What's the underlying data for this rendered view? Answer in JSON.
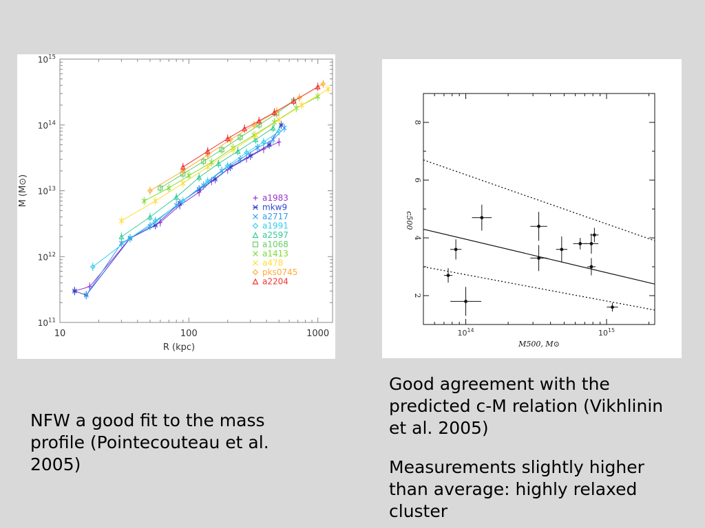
{
  "captions": {
    "left": "NFW a good fit to the mass profile (Pointecouteau et al. 2005)",
    "right_1": "Good agreement with the predicted c-M relation (Vikhlinin et al. 2005)",
    "right_2": "Measurements slightly higher than average: highly relaxed cluster"
  },
  "chart_data": [
    {
      "type": "scatter",
      "xlabel": "R (kpc)",
      "ylabel": "M (M⊙)",
      "xscale": "log",
      "yscale": "log",
      "xlim": [
        10,
        1300
      ],
      "ylim": [
        100000000000.0,
        1000000000000000.0
      ],
      "x_tick_labels": [
        "10",
        "100",
        "1000"
      ],
      "y_tick_labels": [
        {
          "base": "10",
          "exp": "11"
        },
        {
          "base": "10",
          "exp": "12"
        },
        {
          "base": "10",
          "exp": "13"
        },
        {
          "base": "10",
          "exp": "14"
        },
        {
          "base": "10",
          "exp": "15"
        }
      ],
      "legend_position": "right",
      "series": [
        {
          "name": "a1983",
          "marker": "+",
          "color": "#9933cc",
          "x": [
            13,
            17,
            35,
            60,
            85,
            120,
            150,
            200,
            280,
            380,
            500
          ],
          "y": [
            300000000000.0,
            350000000000.0,
            1900000000000.0,
            3300000000000.0,
            6000000000000.0,
            9500000000000.0,
            14000000000000.0,
            21000000000000.0,
            31000000000000.0,
            43000000000000.0,
            55000000000000.0
          ]
        },
        {
          "name": "mkw9",
          "marker": "*",
          "color": "#3344cc",
          "x": [
            13,
            16,
            35,
            55,
            85,
            120,
            160,
            210,
            300,
            420,
            520
          ],
          "y": [
            300000000000.0,
            260000000000.0,
            1900000000000.0,
            3000000000000.0,
            6500000000000.0,
            10500000000000.0,
            15000000000000.0,
            23000000000000.0,
            34000000000000.0,
            50000000000000.0,
            100000000000000.0
          ]
        },
        {
          "name": "a2717",
          "marker": "x",
          "color": "#3399ee",
          "x": [
            16,
            30,
            50,
            80,
            130,
            180,
            250,
            340,
            450,
            550
          ],
          "y": [
            260000000000.0,
            1600000000000.0,
            2900000000000.0,
            6000000000000.0,
            12000000000000.0,
            20000000000000.0,
            30000000000000.0,
            45000000000000.0,
            60000000000000.0,
            90000000000000.0
          ]
        },
        {
          "name": "a1991",
          "marker": "diamond",
          "color": "#33ccee",
          "x": [
            18,
            35,
            55,
            90,
            140,
            200,
            280,
            380,
            500
          ],
          "y": [
            700000000000.0,
            1900000000000.0,
            3500000000000.0,
            7000000000000.0,
            14000000000000.0,
            24000000000000.0,
            38000000000000.0,
            55000000000000.0,
            80000000000000.0
          ]
        },
        {
          "name": "a2597",
          "marker": "triangle",
          "color": "#33cc99",
          "x": [
            30,
            50,
            80,
            120,
            170,
            240,
            330,
            450
          ],
          "y": [
            2000000000000.0,
            4000000000000.0,
            8000000000000.0,
            16000000000000.0,
            26000000000000.0,
            40000000000000.0,
            60000000000000.0,
            90000000000000.0
          ]
        },
        {
          "name": "a1068",
          "marker": "square",
          "color": "#66cc66",
          "x": [
            60,
            90,
            130,
            180,
            250,
            350,
            480,
            650
          ],
          "y": [
            11000000000000.0,
            18000000000000.0,
            28000000000000.0,
            42000000000000.0,
            65000000000000.0,
            100000000000000.0,
            150000000000000.0,
            230000000000000.0
          ]
        },
        {
          "name": "a1413",
          "marker": "x",
          "color": "#77dd33",
          "x": [
            45,
            70,
            100,
            150,
            220,
            320,
            460,
            680,
            1000
          ],
          "y": [
            7000000000000.0,
            11000000000000.0,
            17000000000000.0,
            27000000000000.0,
            45000000000000.0,
            70000000000000.0,
            110000000000000.0,
            180000000000000.0,
            270000000000000.0
          ]
        },
        {
          "name": "a478",
          "marker": "x",
          "color": "#ffdd33",
          "x": [
            30,
            55,
            90,
            140,
            220,
            330,
            500,
            750,
            1200
          ],
          "y": [
            3500000000000.0,
            7000000000000.0,
            13000000000000.0,
            23000000000000.0,
            42000000000000.0,
            70000000000000.0,
            120000000000000.0,
            200000000000000.0,
            350000000000000.0
          ]
        },
        {
          "name": "pks0745",
          "marker": "diamond",
          "color": "#ffaa33",
          "x": [
            50,
            90,
            140,
            210,
            320,
            480,
            720,
            1100
          ],
          "y": [
            10000000000000.0,
            20000000000000.0,
            35000000000000.0,
            60000000000000.0,
            100000000000000.0,
            160000000000000.0,
            260000000000000.0,
            420000000000000.0
          ]
        },
        {
          "name": "a2204",
          "marker": "triangle",
          "color": "#ee3333",
          "x": [
            90,
            140,
            200,
            270,
            350,
            460,
            650,
            1000
          ],
          "y": [
            23000000000000.0,
            40000000000000.0,
            62000000000000.0,
            88000000000000.0,
            115000000000000.0,
            155000000000000.0,
            230000000000000.0,
            380000000000000.0
          ]
        }
      ]
    },
    {
      "type": "scatter",
      "xlabel": "M500, M⊙",
      "ylabel": "c500",
      "xscale": "log",
      "xlim": [
        50000000000000.0,
        2200000000000000.0
      ],
      "ylim": [
        1,
        9
      ],
      "x_tick_labels": [
        {
          "base": "10",
          "exp": "14"
        },
        {
          "base": "10",
          "exp": "15"
        }
      ],
      "y_ticks": [
        2,
        4,
        6,
        8
      ],
      "y_tick_labels": [
        "2",
        "4",
        "6",
        "8"
      ],
      "points": [
        {
          "x": 75000000000000.0,
          "y": 2.7,
          "xerr": 0.03,
          "yerr": 0.25
        },
        {
          "x": 85000000000000.0,
          "y": 3.6,
          "xerr": 0.04,
          "yerr": 0.35
        },
        {
          "x": 100000000000000.0,
          "y": 1.8,
          "xerr": 0.11,
          "yerr": 0.5
        },
        {
          "x": 130000000000000.0,
          "y": 4.7,
          "xerr": 0.07,
          "yerr": 0.45
        },
        {
          "x": 330000000000000.0,
          "y": 4.4,
          "xerr": 0.06,
          "yerr": 0.5
        },
        {
          "x": 330000000000000.0,
          "y": 3.3,
          "xerr": 0.06,
          "yerr": 0.45
        },
        {
          "x": 480000000000000.0,
          "y": 3.6,
          "xerr": 0.04,
          "yerr": 0.45
        },
        {
          "x": 650000000000000.0,
          "y": 3.8,
          "xerr": 0.05,
          "yerr": 0.2
        },
        {
          "x": 780000000000000.0,
          "y": 3.8,
          "xerr": 0.05,
          "yerr": 0.35
        },
        {
          "x": 820000000000000.0,
          "y": 4.1,
          "xerr": 0.03,
          "yerr": 0.25
        },
        {
          "x": 780000000000000.0,
          "y": 3.0,
          "xerr": 0.03,
          "yerr": 0.3
        },
        {
          "x": 1100000000000000.0,
          "y": 1.6,
          "xerr": 0.04,
          "yerr": 0.15
        }
      ],
      "lines": [
        {
          "style": "solid",
          "x": [
            50000000000000.0,
            2200000000000000.0
          ],
          "y": [
            4.3,
            2.4
          ]
        },
        {
          "style": "dotted",
          "x": [
            50000000000000.0,
            2200000000000000.0
          ],
          "y": [
            6.7,
            3.9
          ]
        },
        {
          "style": "dotted",
          "x": [
            50000000000000.0,
            2200000000000000.0
          ],
          "y": [
            3.0,
            1.5
          ]
        }
      ]
    }
  ]
}
